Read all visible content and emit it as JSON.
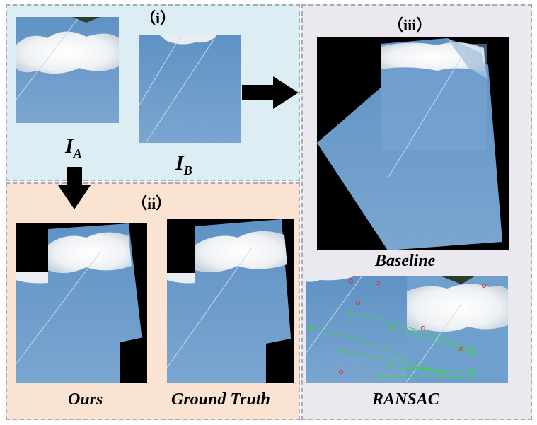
{
  "panels": {
    "i": {
      "label": "（i）"
    },
    "ii": {
      "label": "（ii）"
    },
    "iii": {
      "label": "（iii）"
    }
  },
  "inputs": {
    "image_a_label": "I",
    "image_a_sub": "A",
    "image_b_label": "I",
    "image_b_sub": "B"
  },
  "captions": {
    "ours": "Ours",
    "ground_truth": "Ground Truth",
    "baseline": "Baseline",
    "ransac": "RANSAC"
  },
  "colors": {
    "panel_i_bg": "#dcedf3",
    "panel_ii_bg": "#fbe3d3",
    "panel_iii_bg": "#ebe8ef",
    "sky": "#6e9cc8",
    "arrow": "#000000",
    "match_line": "#3fd14a",
    "outlier": "#e0343a"
  }
}
